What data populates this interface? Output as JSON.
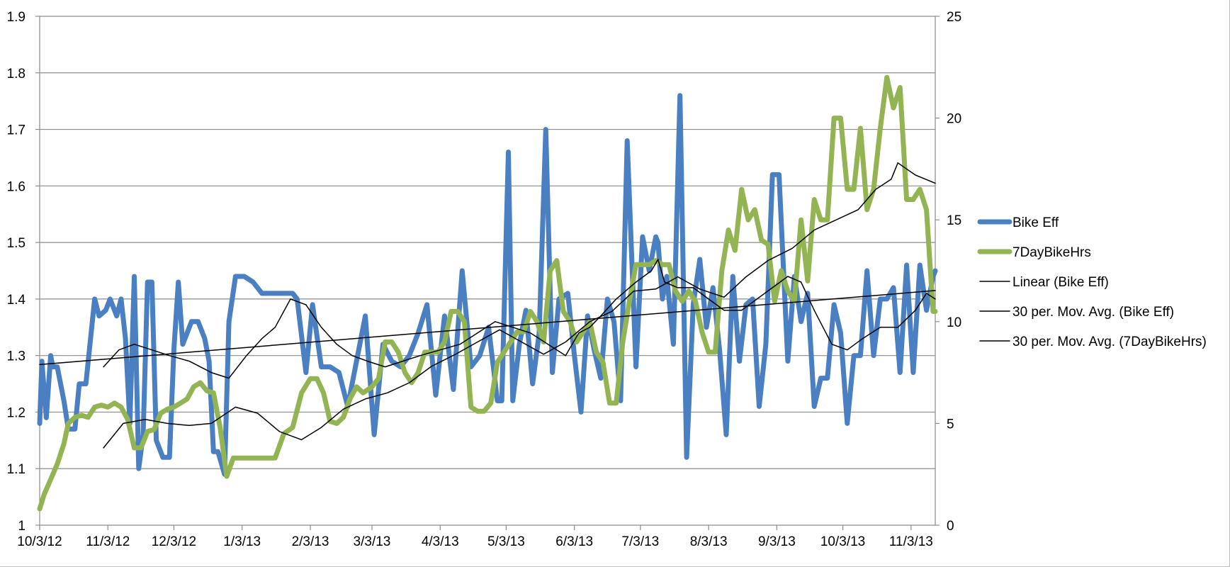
{
  "chart_data": {
    "type": "line",
    "title": "",
    "xlabel": "",
    "ylabel": "",
    "y2label": "",
    "grid": true,
    "legend_position": "right",
    "x_ticks": [
      "10/3/12",
      "11/3/12",
      "12/3/12",
      "1/3/13",
      "2/3/13",
      "3/3/13",
      "4/3/13",
      "5/3/13",
      "6/3/13",
      "7/3/13",
      "8/3/13",
      "9/3/13",
      "10/3/13",
      "11/3/13"
    ],
    "x_range": [
      "10/3/12",
      "11/14/13"
    ],
    "y_left": {
      "min": 1,
      "max": 1.9,
      "ticks": [
        "1",
        "1.1",
        "1.2",
        "1.3",
        "1.4",
        "1.5",
        "1.6",
        "1.7",
        "1.8",
        "1.9"
      ]
    },
    "y_right": {
      "min": 0,
      "max": 25,
      "ticks": [
        "0",
        "5",
        "10",
        "15",
        "20",
        "25"
      ]
    },
    "colors": {
      "bike_eff": "#4a7fc1",
      "bike_hrs": "#93b453",
      "trend": "#000000",
      "grid": "#8c8c8c",
      "axis": "#8c8c8c"
    },
    "series": [
      {
        "name": "Bike Eff",
        "axis": "left",
        "style": "thick",
        "x": [
          "10/3/12",
          "10/4/12",
          "10/6/12",
          "10/8/12",
          "10/9/12",
          "10/11/12",
          "10/14/12",
          "10/16/12",
          "10/19/12",
          "10/21/12",
          "10/24/12",
          "10/28/12",
          "10/30/12",
          "11/2/12",
          "11/4/12",
          "11/7/12",
          "11/9/12",
          "11/11/12",
          "11/13/12",
          "11/15/12",
          "11/17/12",
          "11/19/12",
          "11/21/12",
          "11/23/12",
          "11/25/12",
          "11/28/12",
          "12/1/12",
          "12/3/12",
          "12/5/12",
          "12/7/12",
          "12/11/12",
          "12/14/12",
          "12/17/12",
          "12/19/12",
          "12/21/12",
          "12/23/12",
          "12/26/12",
          "12/28/12",
          "12/31/12",
          "1/4/13",
          "1/8/13",
          "1/12/13",
          "1/18/13",
          "1/26/13",
          "1/28/13",
          "2/1/13",
          "2/4/13",
          "2/8/13",
          "2/12/13",
          "2/16/13",
          "2/20/13",
          "2/24/13",
          "2/28/13",
          "3/4/13",
          "3/8/13",
          "3/12/13",
          "3/16/13",
          "3/20/13",
          "3/24/13",
          "3/28/13",
          "4/1/13",
          "4/5/13",
          "4/9/13",
          "4/13/13",
          "4/17/13",
          "4/21/13",
          "4/25/13",
          "4/29/13",
          "5/1/13",
          "5/4/13",
          "5/6/13",
          "5/9/13",
          "5/12/13",
          "5/15/13",
          "5/18/13",
          "5/21/13",
          "5/24/13",
          "5/27/13",
          "5/31/13",
          "6/3/13",
          "6/6/13",
          "6/9/13",
          "6/12/13",
          "6/15/13",
          "6/18/13",
          "6/21/13",
          "6/24/13",
          "6/27/13",
          "7/1/13",
          "7/4/13",
          "7/7/13",
          "7/10/13",
          "7/11/13",
          "7/13/13",
          "7/15/13",
          "7/18/13",
          "7/21/13",
          "7/24/13",
          "7/27/13",
          "7/30/13",
          "8/2/13",
          "8/5/13",
          "8/8/13",
          "8/11/13",
          "8/14/13",
          "8/17/13",
          "8/20/13",
          "8/23/13",
          "8/26/13",
          "8/29/13",
          "9/1/13",
          "9/4/13",
          "9/8/13",
          "9/11/13",
          "9/14/13",
          "9/17/13",
          "9/20/13",
          "9/23/13",
          "9/26/13",
          "9/29/13",
          "10/2/13",
          "10/5/13",
          "10/8/13",
          "10/11/13",
          "10/14/13",
          "10/17/13",
          "10/20/13",
          "10/23/13",
          "10/26/13",
          "10/29/13",
          "11/1/13",
          "11/4/13",
          "11/7/13",
          "11/10/13",
          "11/13/13",
          "11/14/13"
        ],
        "values": [
          1.18,
          1.29,
          1.19,
          1.3,
          1.28,
          1.28,
          1.22,
          1.17,
          1.17,
          1.25,
          1.25,
          1.4,
          1.37,
          1.38,
          1.4,
          1.37,
          1.4,
          1.33,
          1.18,
          1.44,
          1.1,
          1.16,
          1.43,
          1.43,
          1.15,
          1.12,
          1.12,
          1.31,
          1.43,
          1.32,
          1.36,
          1.36,
          1.33,
          1.29,
          1.13,
          1.13,
          1.09,
          1.36,
          1.44,
          1.44,
          1.43,
          1.41,
          1.41,
          1.41,
          1.4,
          1.27,
          1.39,
          1.28,
          1.28,
          1.27,
          1.21,
          1.29,
          1.37,
          1.16,
          1.32,
          1.29,
          1.28,
          1.3,
          1.34,
          1.39,
          1.23,
          1.37,
          1.24,
          1.45,
          1.28,
          1.3,
          1.35,
          1.22,
          1.22,
          1.66,
          1.22,
          1.32,
          1.38,
          1.25,
          1.34,
          1.7,
          1.27,
          1.4,
          1.41,
          1.3,
          1.2,
          1.37,
          1.31,
          1.26,
          1.4,
          1.36,
          1.22,
          1.68,
          1.28,
          1.51,
          1.45,
          1.51,
          1.5,
          1.4,
          1.44,
          1.32,
          1.76,
          1.12,
          1.39,
          1.47,
          1.35,
          1.42,
          1.31,
          1.16,
          1.44,
          1.29,
          1.39,
          1.4,
          1.21,
          1.32,
          1.62,
          1.62,
          1.29,
          1.44,
          1.36,
          1.41,
          1.21,
          1.26,
          1.26,
          1.39,
          1.34,
          1.18,
          1.3,
          1.3,
          1.45,
          1.3,
          1.4,
          1.4,
          1.42,
          1.27,
          1.46,
          1.27,
          1.46,
          1.38,
          1.44,
          1.45
        ],
        "data_labels": []
      },
      {
        "name": "7DayBikeHrs",
        "axis": "right",
        "style": "thick",
        "x": [
          "10/3/12",
          "10/5/12",
          "10/7/12",
          "10/9/12",
          "10/11/12",
          "10/14/12",
          "10/16/12",
          "10/19/12",
          "10/22/12",
          "10/25/12",
          "10/28/12",
          "10/31/12",
          "11/3/12",
          "11/6/12",
          "11/9/12",
          "11/12/12",
          "11/15/12",
          "11/18/12",
          "11/21/12",
          "11/24/12",
          "11/27/12",
          "11/30/12",
          "12/3/12",
          "12/6/12",
          "12/9/12",
          "12/12/12",
          "12/15/12",
          "12/18/12",
          "12/21/12",
          "12/24/12",
          "12/27/12",
          "12/30/12",
          "1/2/13",
          "1/6/13",
          "1/10/13",
          "1/14/13",
          "1/18/13",
          "1/22/13",
          "1/26/13",
          "1/30/13",
          "2/3/13",
          "2/6/13",
          "2/9/13",
          "2/12/13",
          "2/15/13",
          "2/18/13",
          "2/21/13",
          "2/24/13",
          "2/27/13",
          "3/3/13",
          "3/6/13",
          "3/9/13",
          "3/12/13",
          "3/15/13",
          "3/18/13",
          "3/21/13",
          "3/24/13",
          "3/27/13",
          "3/30/13",
          "4/2/13",
          "4/5/13",
          "4/8/13",
          "4/11/13",
          "4/14/13",
          "4/17/13",
          "4/20/13",
          "4/23/13",
          "4/26/13",
          "4/29/13",
          "5/2/13",
          "5/5/13",
          "5/8/13",
          "5/11/13",
          "5/14/13",
          "5/17/13",
          "5/20/13",
          "5/23/13",
          "5/26/13",
          "5/29/13",
          "6/1/13",
          "6/4/13",
          "6/7/13",
          "6/10/13",
          "6/13/13",
          "6/16/13",
          "6/19/13",
          "6/22/13",
          "6/25/13",
          "6/28/13",
          "7/1/13",
          "7/4/13",
          "7/7/13",
          "7/10/13",
          "7/13/13",
          "7/16/13",
          "7/19/13",
          "7/22/13",
          "7/25/13",
          "7/28/13",
          "7/31/13",
          "8/3/13",
          "8/6/13",
          "8/9/13",
          "8/12/13",
          "8/15/13",
          "8/18/13",
          "8/21/13",
          "8/24/13",
          "8/27/13",
          "8/30/13",
          "9/2/13",
          "9/5/13",
          "9/8/13",
          "9/11/13",
          "9/14/13",
          "9/17/13",
          "9/20/13",
          "9/23/13",
          "9/26/13",
          "9/29/13",
          "10/2/13",
          "10/5/13",
          "10/8/13",
          "10/11/13",
          "10/14/13",
          "10/17/13",
          "10/20/13",
          "10/23/13",
          "10/26/13",
          "10/29/13",
          "11/1/13",
          "11/4/13",
          "11/7/13",
          "11/10/13",
          "11/13/13",
          "11/14/13"
        ],
        "values": [
          0.8,
          1.5,
          2.0,
          2.5,
          3.0,
          4.0,
          5.0,
          5.3,
          5.4,
          5.3,
          5.8,
          5.9,
          5.8,
          6.0,
          5.8,
          5.2,
          3.8,
          3.8,
          4.6,
          4.7,
          5.5,
          5.7,
          5.8,
          6.0,
          6.2,
          6.8,
          7.0,
          6.6,
          6.5,
          4.8,
          2.4,
          3.3,
          3.3,
          3.3,
          3.3,
          3.3,
          3.3,
          4.5,
          4.8,
          6.5,
          7.2,
          7.2,
          6.5,
          5.1,
          5.0,
          5.3,
          6.2,
          6.8,
          6.5,
          6.8,
          7.2,
          9.0,
          9.0,
          8.5,
          7.5,
          7.0,
          7.5,
          8.5,
          8.5,
          8.5,
          9.0,
          10.5,
          10.5,
          10.0,
          5.8,
          5.6,
          5.6,
          6.0,
          8.0,
          8.5,
          9.0,
          9.5,
          9.5,
          10.5,
          10.0,
          9.0,
          12.5,
          13.0,
          10.5,
          10.0,
          9.0,
          9.5,
          10.0,
          8.5,
          8.0,
          6.0,
          6.0,
          9.0,
          11.0,
          12.8,
          12.8,
          12.8,
          13.0,
          12.8,
          12.8,
          11.5,
          11.0,
          11.5,
          11.0,
          9.5,
          8.5,
          8.5,
          12.5,
          14.5,
          13.5,
          16.5,
          15.0,
          15.5,
          14.0,
          13.8,
          11.0,
          12.5,
          11.5,
          11.0,
          15.0,
          12.0,
          16.0,
          15.0,
          15.0,
          20.0,
          20.0,
          16.5,
          16.5,
          19.5,
          15.5,
          16.5,
          19.5,
          22.0,
          20.5,
          21.5,
          16.0,
          16.0,
          16.5,
          15.5,
          10.5,
          10.5
        ],
        "data_labels": []
      },
      {
        "name": "Linear (Bike Eff)",
        "axis": "left",
        "style": "thin",
        "x": [
          "10/3/12",
          "11/14/13"
        ],
        "values": [
          1.284,
          1.415
        ],
        "data_labels": []
      },
      {
        "name": "30 per. Mov. Avg. (Bike Eff)",
        "axis": "left",
        "style": "thin",
        "x": [
          "11/1/12",
          "11/8/12",
          "11/15/12",
          "11/23/12",
          "12/1/12",
          "12/10/12",
          "12/20/12",
          "12/28/12",
          "1/5/13",
          "1/12/13",
          "1/18/13",
          "1/25/13",
          "2/1/13",
          "2/8/13",
          "2/15/13",
          "2/22/13",
          "3/1/13",
          "3/9/13",
          "3/17/13",
          "3/25/13",
          "4/3/13",
          "4/12/13",
          "4/20/13",
          "4/28/13",
          "5/6/13",
          "5/14/13",
          "5/22/13",
          "5/30/13",
          "6/5/13",
          "6/10/13",
          "6/15/13",
          "6/22/13",
          "7/1/13",
          "7/8/13",
          "7/11/13",
          "7/14/13",
          "7/20/13",
          "7/27/13",
          "8/3/13",
          "8/10/13",
          "8/18/13",
          "8/25/13",
          "9/1/13",
          "9/8/13",
          "9/14/13",
          "9/20/13",
          "9/28/13",
          "10/5/13",
          "10/12/13",
          "10/20/13",
          "10/28/13",
          "11/5/13",
          "11/10/13",
          "11/14/13"
        ],
        "values": [
          1.28,
          1.31,
          1.32,
          1.31,
          1.3,
          1.29,
          1.27,
          1.26,
          1.3,
          1.33,
          1.35,
          1.4,
          1.39,
          1.35,
          1.32,
          1.3,
          1.29,
          1.28,
          1.29,
          1.3,
          1.31,
          1.32,
          1.34,
          1.36,
          1.35,
          1.34,
          1.32,
          1.3,
          1.34,
          1.35,
          1.37,
          1.4,
          1.43,
          1.45,
          1.47,
          1.43,
          1.42,
          1.42,
          1.4,
          1.38,
          1.38,
          1.4,
          1.42,
          1.44,
          1.43,
          1.38,
          1.32,
          1.31,
          1.33,
          1.35,
          1.35,
          1.38,
          1.41,
          1.4
        ],
        "data_labels": []
      },
      {
        "name": "30 per. Mov. Avg. (7DayBikeHrs)",
        "axis": "right",
        "style": "thin",
        "x": [
          "11/1/12",
          "11/10/12",
          "11/20/12",
          "11/30/12",
          "12/10/12",
          "12/20/12",
          "12/31/12",
          "1/10/13",
          "1/20/13",
          "1/30/13",
          "2/8/13",
          "2/18/13",
          "2/28/13",
          "3/10/13",
          "3/20/13",
          "3/30/13",
          "4/10/13",
          "4/20/13",
          "4/30/13",
          "5/10/13",
          "5/20/13",
          "5/30/13",
          "6/10/13",
          "6/20/13",
          "6/30/13",
          "7/10/13",
          "7/20/13",
          "7/30/13",
          "8/10/13",
          "8/20/13",
          "8/30/13",
          "9/10/13",
          "9/20/13",
          "9/30/13",
          "10/10/13",
          "10/18/13",
          "10/25/13",
          "10/28/13",
          "11/5/13",
          "11/14/13"
        ],
        "values": [
          3.8,
          5.0,
          5.2,
          5.0,
          4.9,
          5.0,
          5.8,
          5.5,
          4.6,
          4.2,
          4.8,
          5.7,
          6.2,
          6.5,
          7.0,
          7.8,
          8.4,
          9.0,
          9.6,
          9.0,
          8.4,
          9.0,
          10.0,
          10.5,
          11.5,
          11.6,
          12.2,
          11.6,
          11.2,
          12.2,
          13.0,
          13.6,
          14.5,
          15.0,
          15.5,
          16.5,
          17.0,
          17.8,
          17.2,
          16.8
        ],
        "data_labels": []
      }
    ]
  }
}
